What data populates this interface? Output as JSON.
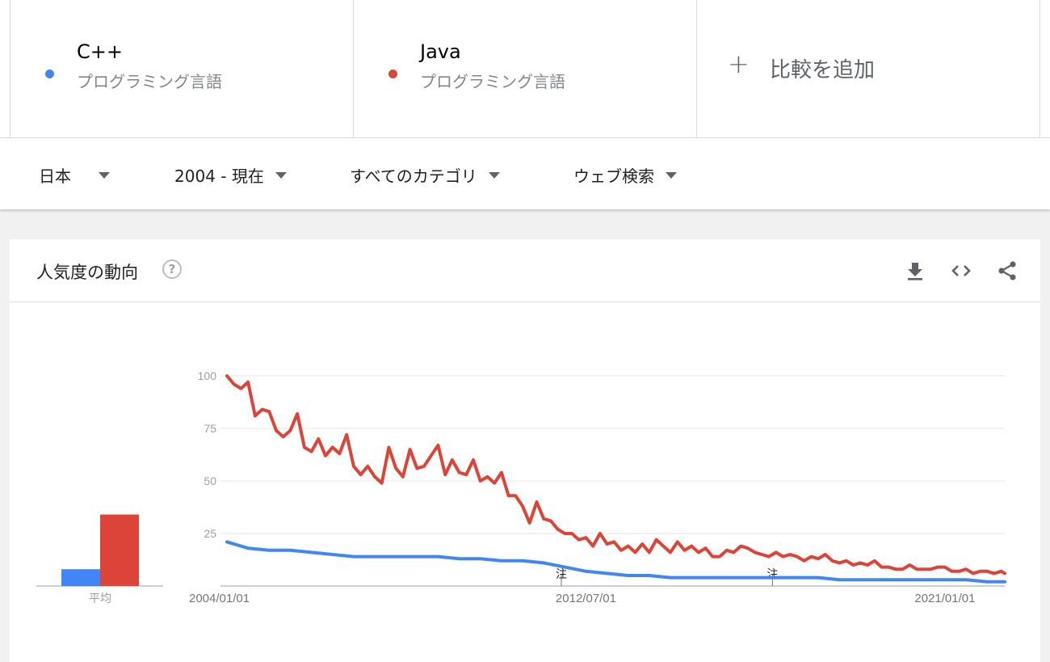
{
  "terms": [
    {
      "name": "C++",
      "type": "プログラミング言語",
      "color": "#4285f4"
    },
    {
      "name": "Java",
      "type": "プログラミング言語",
      "color": "#db4437"
    }
  ],
  "add_compare": {
    "label": "比較を追加",
    "icon": "plus-icon"
  },
  "filters": {
    "region": "日本",
    "time_range": "2004 - 現在",
    "category": "すべてのカテゴリ",
    "search_type": "ウェブ検索"
  },
  "card": {
    "title": "人気度の動向",
    "help_icon": "question-circle-icon",
    "tools": [
      "download-icon",
      "embed-code-icon",
      "share-icon"
    ]
  },
  "chart_data": {
    "type": "line",
    "x_tick_labels": [
      "2004/01/01",
      "2012/07/01",
      "2021/01/01"
    ],
    "x_range": [
      "2004-01",
      "2022-06"
    ],
    "ylim": [
      0,
      100
    ],
    "y_ticks": [
      25,
      50,
      75,
      100
    ],
    "grid": true,
    "annotations": [
      {
        "label": "注",
        "x": "2011-12"
      },
      {
        "label": "注",
        "x": "2016-12"
      }
    ],
    "average_bars": {
      "label": "平均",
      "values": [
        8,
        34
      ]
    },
    "series": [
      {
        "name": "C++",
        "color": "#4285f4",
        "points": [
          [
            "2004-01",
            21
          ],
          [
            "2004-07",
            18
          ],
          [
            "2005-01",
            17
          ],
          [
            "2005-07",
            17
          ],
          [
            "2006-01",
            16
          ],
          [
            "2006-07",
            15
          ],
          [
            "2007-01",
            14
          ],
          [
            "2007-07",
            14
          ],
          [
            "2008-01",
            14
          ],
          [
            "2008-07",
            14
          ],
          [
            "2009-01",
            14
          ],
          [
            "2009-07",
            13
          ],
          [
            "2010-01",
            13
          ],
          [
            "2010-07",
            12
          ],
          [
            "2011-01",
            12
          ],
          [
            "2011-07",
            11
          ],
          [
            "2012-01",
            9
          ],
          [
            "2012-07",
            7
          ],
          [
            "2013-01",
            6
          ],
          [
            "2013-07",
            5
          ],
          [
            "2014-01",
            5
          ],
          [
            "2014-07",
            4
          ],
          [
            "2015-01",
            4
          ],
          [
            "2015-07",
            4
          ],
          [
            "2016-01",
            4
          ],
          [
            "2016-07",
            4
          ],
          [
            "2017-01",
            4
          ],
          [
            "2017-07",
            4
          ],
          [
            "2018-01",
            4
          ],
          [
            "2018-07",
            3
          ],
          [
            "2019-01",
            3
          ],
          [
            "2019-07",
            3
          ],
          [
            "2020-01",
            3
          ],
          [
            "2020-07",
            3
          ],
          [
            "2021-01",
            3
          ],
          [
            "2021-07",
            3
          ],
          [
            "2022-01",
            2
          ],
          [
            "2022-06",
            2
          ]
        ]
      },
      {
        "name": "Java",
        "color": "#db4437",
        "points": [
          [
            "2004-01",
            100
          ],
          [
            "2004-03",
            96
          ],
          [
            "2004-05",
            94
          ],
          [
            "2004-07",
            97
          ],
          [
            "2004-09",
            81
          ],
          [
            "2004-11",
            84
          ],
          [
            "2005-01",
            83
          ],
          [
            "2005-03",
            74
          ],
          [
            "2005-05",
            71
          ],
          [
            "2005-07",
            74
          ],
          [
            "2005-09",
            82
          ],
          [
            "2005-11",
            66
          ],
          [
            "2006-01",
            64
          ],
          [
            "2006-03",
            70
          ],
          [
            "2006-05",
            62
          ],
          [
            "2006-07",
            66
          ],
          [
            "2006-09",
            63
          ],
          [
            "2006-11",
            72
          ],
          [
            "2007-01",
            57
          ],
          [
            "2007-03",
            53
          ],
          [
            "2007-05",
            57
          ],
          [
            "2007-07",
            52
          ],
          [
            "2007-09",
            49
          ],
          [
            "2007-11",
            66
          ],
          [
            "2008-01",
            56
          ],
          [
            "2008-03",
            52
          ],
          [
            "2008-05",
            65
          ],
          [
            "2008-07",
            56
          ],
          [
            "2008-09",
            57
          ],
          [
            "2008-11",
            62
          ],
          [
            "2009-01",
            67
          ],
          [
            "2009-03",
            53
          ],
          [
            "2009-05",
            60
          ],
          [
            "2009-07",
            54
          ],
          [
            "2009-09",
            53
          ],
          [
            "2009-11",
            60
          ],
          [
            "2010-01",
            50
          ],
          [
            "2010-03",
            52
          ],
          [
            "2010-05",
            49
          ],
          [
            "2010-07",
            54
          ],
          [
            "2010-09",
            43
          ],
          [
            "2010-11",
            43
          ],
          [
            "2011-01",
            38
          ],
          [
            "2011-03",
            30
          ],
          [
            "2011-05",
            40
          ],
          [
            "2011-07",
            32
          ],
          [
            "2011-09",
            31
          ],
          [
            "2011-11",
            27
          ],
          [
            "2012-01",
            25
          ],
          [
            "2012-03",
            25
          ],
          [
            "2012-05",
            22
          ],
          [
            "2012-07",
            23
          ],
          [
            "2012-09",
            19
          ],
          [
            "2012-11",
            25
          ],
          [
            "2013-01",
            20
          ],
          [
            "2013-03",
            21
          ],
          [
            "2013-05",
            17
          ],
          [
            "2013-07",
            19
          ],
          [
            "2013-09",
            16
          ],
          [
            "2013-11",
            20
          ],
          [
            "2014-01",
            16
          ],
          [
            "2014-03",
            22
          ],
          [
            "2014-05",
            19
          ],
          [
            "2014-07",
            16
          ],
          [
            "2014-09",
            21
          ],
          [
            "2014-11",
            17
          ],
          [
            "2015-01",
            19
          ],
          [
            "2015-03",
            16
          ],
          [
            "2015-05",
            18
          ],
          [
            "2015-07",
            14
          ],
          [
            "2015-09",
            14
          ],
          [
            "2015-11",
            17
          ],
          [
            "2016-01",
            16
          ],
          [
            "2016-03",
            19
          ],
          [
            "2016-05",
            18
          ],
          [
            "2016-07",
            16
          ],
          [
            "2016-09",
            15
          ],
          [
            "2016-11",
            14
          ],
          [
            "2017-01",
            16
          ],
          [
            "2017-03",
            14
          ],
          [
            "2017-05",
            15
          ],
          [
            "2017-07",
            14
          ],
          [
            "2017-09",
            12
          ],
          [
            "2017-11",
            14
          ],
          [
            "2018-01",
            13
          ],
          [
            "2018-03",
            15
          ],
          [
            "2018-05",
            12
          ],
          [
            "2018-07",
            11
          ],
          [
            "2018-09",
            12
          ],
          [
            "2018-11",
            10
          ],
          [
            "2019-01",
            11
          ],
          [
            "2019-03",
            10
          ],
          [
            "2019-05",
            12
          ],
          [
            "2019-07",
            9
          ],
          [
            "2019-09",
            9
          ],
          [
            "2019-11",
            8
          ],
          [
            "2020-01",
            8
          ],
          [
            "2020-03",
            10
          ],
          [
            "2020-05",
            8
          ],
          [
            "2020-07",
            8
          ],
          [
            "2020-09",
            8
          ],
          [
            "2020-11",
            9
          ],
          [
            "2021-01",
            9
          ],
          [
            "2021-03",
            7
          ],
          [
            "2021-05",
            7
          ],
          [
            "2021-07",
            8
          ],
          [
            "2021-09",
            6
          ],
          [
            "2021-11",
            7
          ],
          [
            "2022-01",
            7
          ],
          [
            "2022-03",
            6
          ],
          [
            "2022-05",
            7
          ],
          [
            "2022-06",
            6
          ]
        ]
      }
    ]
  }
}
